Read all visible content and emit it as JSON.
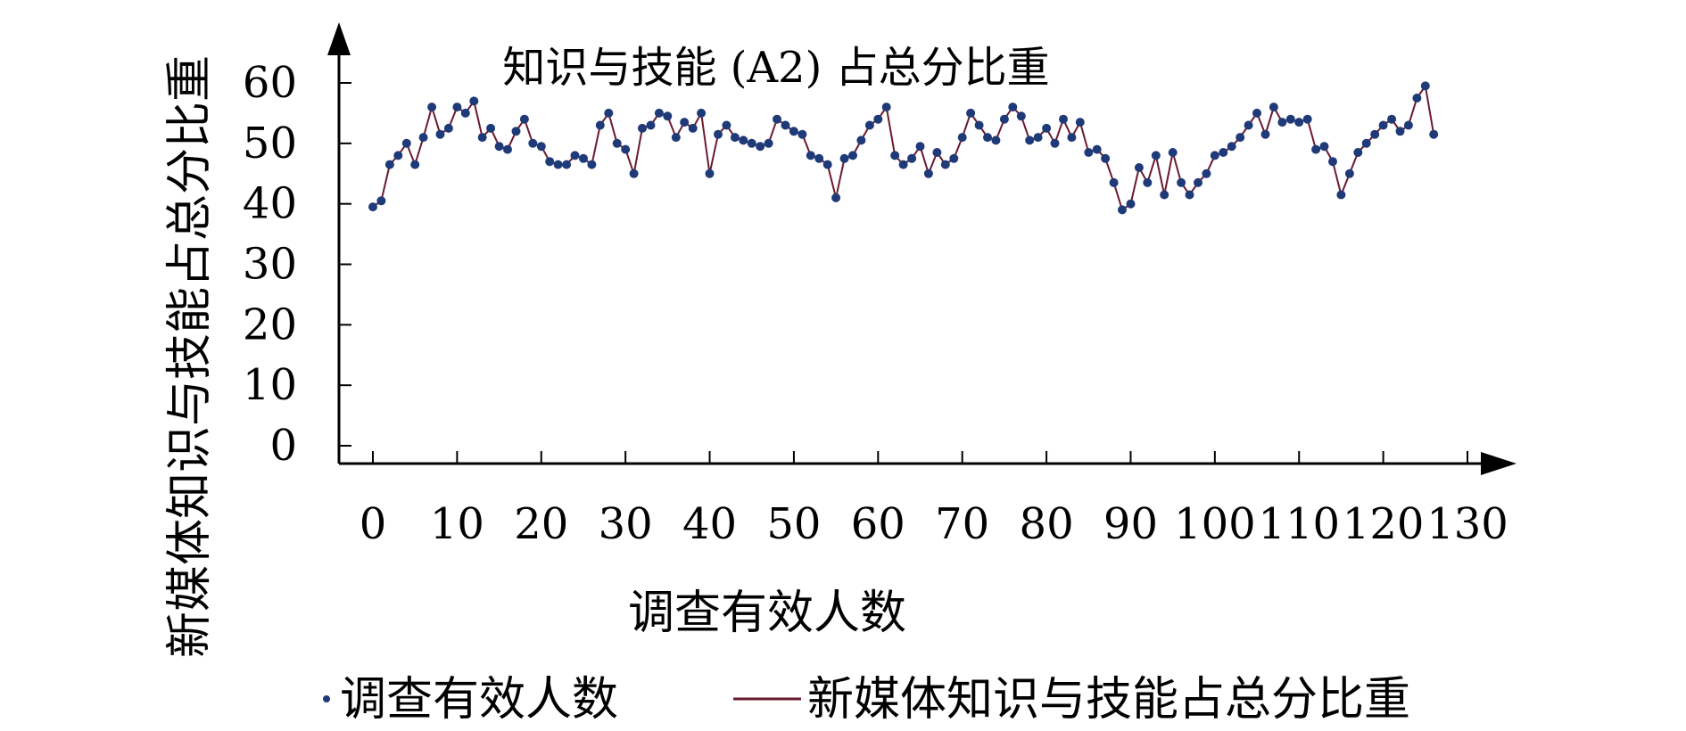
{
  "chart_data": {
    "type": "line",
    "title": "知识与技能 (A2) 占总分比重",
    "xlabel": "调查有效人数",
    "ylabel": "新媒体知识与技能占总分比重",
    "xlim": [
      -4,
      135
    ],
    "ylim": [
      -3,
      66
    ],
    "x_ticks": [
      "0",
      "10",
      "20",
      "30",
      "40",
      "50",
      "60",
      "70",
      "80",
      "90",
      "100",
      "110",
      "120",
      "130"
    ],
    "y_ticks": [
      "0",
      "10",
      "20",
      "30",
      "40",
      "50",
      "60"
    ],
    "legend_position": "bottom",
    "grid": false,
    "series": [
      {
        "name": "调查有效人数",
        "marker_color": "#1f3a78",
        "legend_label": "调查有效人数"
      },
      {
        "name": "新媒体知识与技能占总分比重",
        "line_color": "#6b1a2e",
        "legend_label": "新媒体知识与技能占总分比重"
      }
    ],
    "x": [
      0,
      1,
      2,
      3,
      4,
      5,
      6,
      7,
      8,
      9,
      10,
      11,
      12,
      13,
      14,
      15,
      16,
      17,
      18,
      19,
      20,
      21,
      22,
      23,
      24,
      25,
      26,
      27,
      28,
      29,
      30,
      31,
      32,
      33,
      34,
      35,
      36,
      37,
      38,
      39,
      40,
      41,
      42,
      43,
      44,
      45,
      46,
      47,
      48,
      49,
      50,
      51,
      52,
      53,
      54,
      55,
      56,
      57,
      58,
      59,
      60,
      61,
      62,
      63,
      64,
      65,
      66,
      67,
      68,
      69,
      70,
      71,
      72,
      73,
      74,
      75,
      76,
      77,
      78,
      79,
      80,
      81,
      82,
      83,
      84,
      85,
      86,
      87,
      88,
      89,
      90,
      91,
      92,
      93,
      94,
      95,
      96,
      97,
      98,
      99,
      100,
      101,
      102,
      103,
      104,
      105,
      106,
      107,
      108,
      109,
      110,
      111,
      112,
      113,
      114,
      115,
      116,
      117,
      118,
      119,
      120,
      121,
      122,
      123,
      124,
      125,
      126
    ],
    "values": [
      39.5,
      40.5,
      46.5,
      48,
      50,
      46.5,
      51,
      56,
      51.5,
      52.5,
      56,
      55,
      57,
      51,
      52.5,
      49.5,
      49,
      52,
      54,
      50,
      49.5,
      47,
      46.5,
      46.5,
      48,
      47.5,
      46.5,
      53,
      55,
      50,
      49,
      45,
      52.5,
      53,
      55,
      54.5,
      51,
      53.5,
      52.5,
      55,
      45,
      51.5,
      53,
      51,
      50.5,
      50,
      49.5,
      50,
      54,
      53,
      52,
      51.5,
      48,
      47.5,
      46.5,
      41,
      47.5,
      48,
      50.5,
      53,
      54,
      56,
      48,
      46.5,
      47.5,
      49.5,
      45,
      48.5,
      46.5,
      47.5,
      51,
      55,
      53,
      51,
      50.5,
      54,
      56,
      54.5,
      50.5,
      51,
      52.5,
      50,
      54,
      51,
      53.5,
      48.5,
      49,
      47.5,
      43.5,
      39,
      40,
      46,
      43.5,
      48,
      41.5,
      48.5,
      43.5,
      41.5,
      43.5,
      45,
      48,
      48.5,
      49.5,
      51,
      53,
      55,
      51.5,
      56,
      53.5,
      54,
      53.5,
      54,
      49,
      49.5,
      47,
      41.5,
      45,
      48.5,
      50,
      51.5,
      53,
      54,
      52,
      53,
      57.5,
      59.5,
      51.5
    ]
  }
}
